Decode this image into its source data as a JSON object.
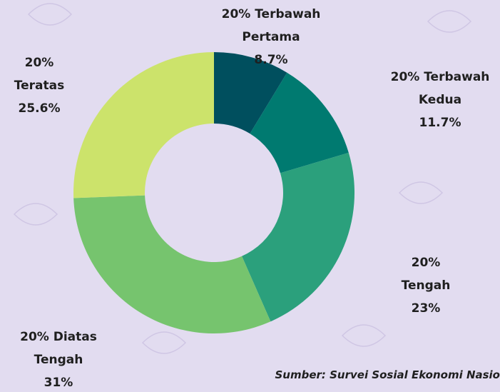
{
  "chart_data": {
    "type": "donut",
    "categories": [
      "20% Terbawah Pertama",
      "20% Terbawah Kedua",
      "20% Tengah",
      "20% Diatas Tengah",
      "20% Teratas"
    ],
    "values": [
      8.7,
      11.7,
      23,
      31,
      25.6
    ],
    "value_labels": [
      "8.7%",
      "11.7%",
      "23%",
      "31%",
      "25.6%"
    ],
    "colors": [
      "#004f5e",
      "#007a70",
      "#2ba07c",
      "#76c46e",
      "#cce36b"
    ],
    "source": "Sumber: Survei Sosial Ekonomi Nasio"
  }
}
